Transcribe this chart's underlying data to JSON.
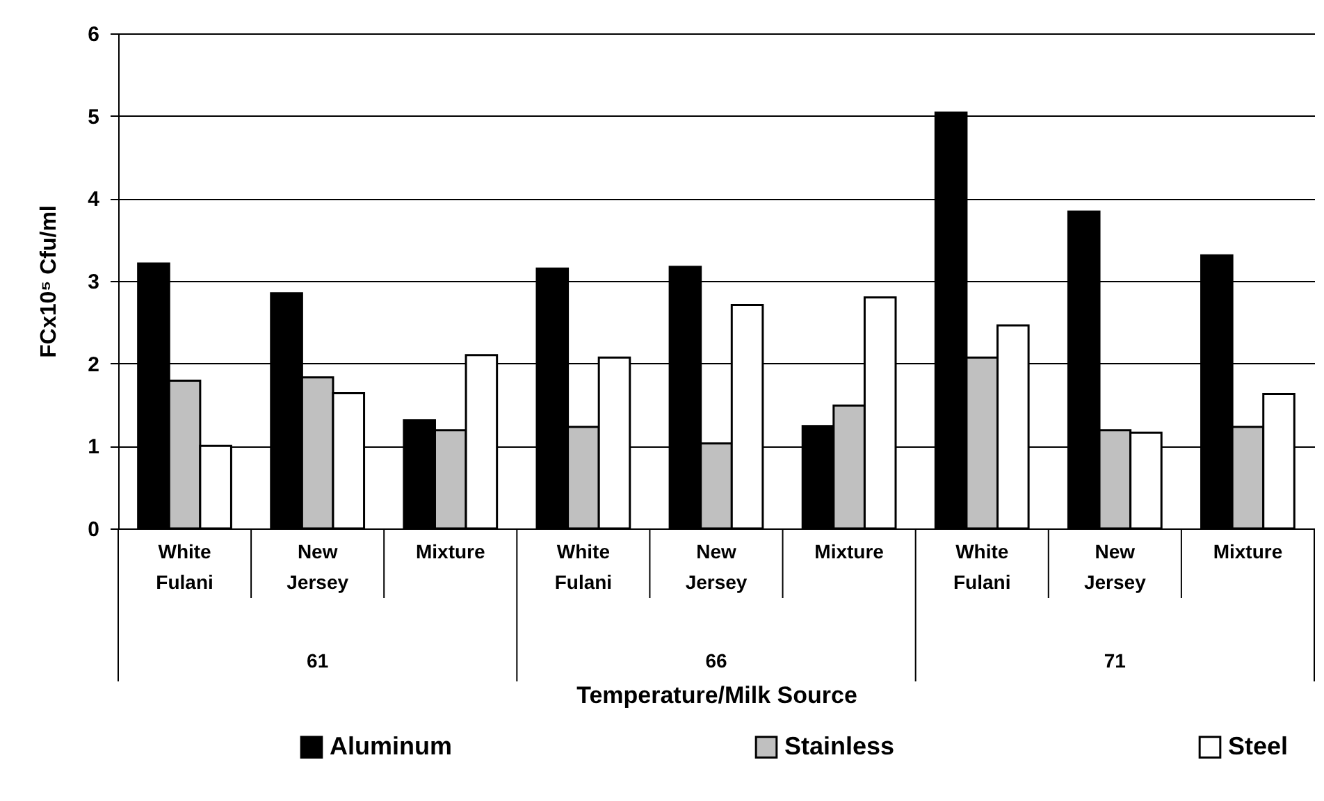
{
  "chart_data": {
    "type": "bar",
    "xlabel": "Temperature/Milk Source",
    "ylabel": "FCx10⁵ Cfu/ml",
    "categories": [
      "White Fulani",
      "New Jersey",
      "Mixture",
      "White Fulani",
      "New Jersey",
      "Mixture",
      "White Fulani",
      "New Jersey",
      "Mixture"
    ],
    "annotations": [
      "61",
      "66",
      "71"
    ],
    "series": [
      {
        "name": "Aluminum",
        "color": "#000000",
        "values": [
          3.21,
          2.85,
          1.31,
          3.15,
          3.17,
          1.24,
          5.04,
          3.84,
          3.31
        ]
      },
      {
        "name": "Stainless",
        "color": "#c0c0c0",
        "values": [
          1.79,
          1.83,
          1.19,
          1.23,
          1.03,
          1.49,
          2.07,
          1.19,
          1.23
        ]
      },
      {
        "name": "Steel",
        "color": "#ffffff",
        "values": [
          1.0,
          1.64,
          2.1,
          2.07,
          2.71,
          2.8,
          2.46,
          1.16,
          1.63
        ]
      }
    ],
    "ylim": [
      0,
      6
    ],
    "yticks": [
      0,
      1,
      2,
      3,
      4,
      5,
      6
    ],
    "grid": "y",
    "legend": "bottom"
  }
}
